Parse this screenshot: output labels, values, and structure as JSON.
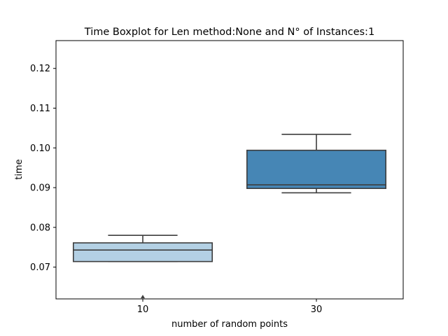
{
  "chart_data": {
    "type": "boxplot",
    "title": "Time Boxplot for Len method:None and N° of Instances:1",
    "xlabel": "number of random points",
    "ylabel": "time",
    "ylim": [
      0.062,
      0.127
    ],
    "yticks": [
      0.07,
      0.08,
      0.09,
      0.1,
      0.11,
      0.12
    ],
    "ytick_labels": [
      "0.07",
      "0.08",
      "0.09",
      "0.10",
      "0.11",
      "0.12"
    ],
    "categories": [
      "10",
      "30"
    ],
    "boxes": [
      {
        "category": "10",
        "whisker_low": 0.0714,
        "q1": 0.0714,
        "median": 0.0743,
        "q3": 0.0761,
        "whisker_high": 0.078,
        "outliers": [
          0.0625
        ],
        "color": "#b3d0e4"
      },
      {
        "category": "30",
        "whisker_low": 0.0887,
        "q1": 0.0898,
        "median": 0.0907,
        "q3": 0.0994,
        "whisker_high": 0.1034,
        "outliers": [],
        "color": "#4686b5"
      }
    ],
    "grid": false,
    "line_color": "#3d3d3d"
  }
}
